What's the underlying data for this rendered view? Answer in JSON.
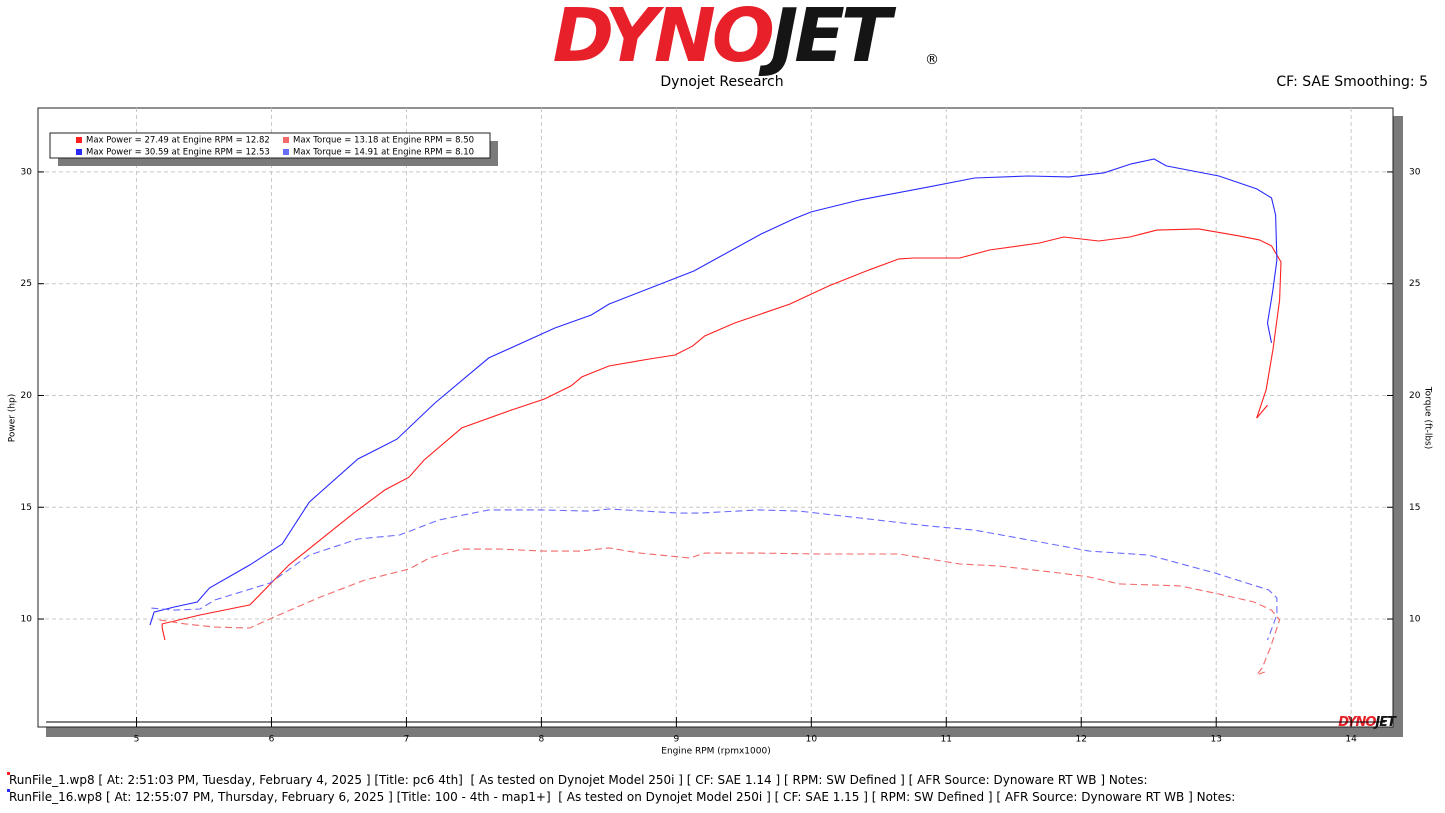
{
  "logo": {
    "red": "DYNO",
    "black": "JET",
    "mark": "®"
  },
  "subtitle": "Dynojet Research",
  "settings_text": "CF: SAE Smoothing: 5",
  "corner_logo": {
    "red": "DYNO",
    "black": "JET"
  },
  "chart_data": {
    "type": "line",
    "x_label": "Engine RPM (rpmx1000)",
    "y_label": "Power (hp)",
    "y2_label": "Torque (ft-lbs)",
    "xlim": [
      4.27,
      14.31
    ],
    "xticks": [
      5,
      6,
      7,
      8,
      9,
      10,
      11,
      12,
      13,
      14
    ],
    "ylim": [
      5.17,
      32.86
    ],
    "yticks": [
      10,
      15,
      20,
      25,
      30
    ],
    "y2lim": [
      5.17,
      32.86
    ],
    "y2ticks": [
      10,
      15,
      20,
      25,
      30
    ],
    "grid": true,
    "legend": "top-left",
    "series": [
      {
        "name": "Max Power = 27.49 at Engine RPM = 12.82",
        "color": "#ff1f1f",
        "dashed": false,
        "x": [
          5.21,
          5.19,
          5.19,
          5.47,
          5.84,
          6.13,
          6.61,
          6.84,
          7.02,
          7.13,
          7.41,
          7.76,
          8.02,
          8.22,
          8.3,
          8.5,
          8.8,
          8.99,
          9.12,
          9.21,
          9.43,
          9.84,
          10.13,
          10.43,
          10.65,
          10.76,
          11.1,
          11.32,
          11.69,
          11.87,
          12.13,
          12.36,
          12.56,
          12.87,
          13.17,
          13.32,
          13.41,
          13.48,
          13.47,
          13.42,
          13.37,
          13.3,
          13.38
        ],
        "values": [
          9.06,
          9.6,
          9.78,
          10.18,
          10.63,
          12.42,
          14.74,
          15.77,
          16.35,
          17.11,
          18.55,
          19.31,
          19.84,
          20.43,
          20.83,
          21.32,
          21.63,
          21.81,
          22.21,
          22.66,
          23.24,
          24.09,
          24.9,
          25.62,
          26.11,
          26.15,
          26.15,
          26.51,
          26.82,
          27.09,
          26.91,
          27.09,
          27.4,
          27.45,
          27.14,
          26.96,
          26.69,
          25.97,
          24.27,
          22.04,
          20.25,
          18.99,
          19.57
        ]
      },
      {
        "name": "Max Power = 30.59 at Engine RPM = 12.53",
        "color": "#2a2aff",
        "dashed": false,
        "x": [
          5.1,
          5.13,
          5.28,
          5.45,
          5.54,
          5.84,
          6.08,
          6.28,
          6.64,
          6.93,
          7.21,
          7.61,
          8.1,
          8.37,
          8.5,
          9.13,
          9.32,
          9.63,
          9.87,
          10.0,
          10.36,
          10.87,
          11.21,
          11.61,
          11.91,
          12.17,
          12.37,
          12.54,
          12.63,
          13.02,
          13.3,
          13.41,
          13.44,
          13.45,
          13.42,
          13.38,
          13.41
        ],
        "values": [
          9.73,
          10.31,
          10.54,
          10.76,
          11.39,
          12.42,
          13.36,
          15.23,
          17.16,
          18.05,
          19.66,
          21.68,
          23.02,
          23.6,
          24.09,
          25.57,
          26.2,
          27.23,
          27.9,
          28.21,
          28.75,
          29.33,
          29.73,
          29.82,
          29.78,
          29.96,
          30.36,
          30.58,
          30.27,
          29.82,
          29.24,
          28.84,
          28.08,
          26.06,
          24.72,
          23.24,
          22.35
        ]
      },
      {
        "name": "Max Torque = 13.18 at Engine RPM = 8.50",
        "color": "#f26a6a",
        "dashed": true,
        "axis": "y2",
        "x": [
          5.17,
          5.36,
          5.58,
          5.84,
          6.02,
          6.36,
          6.69,
          7.02,
          7.17,
          7.41,
          7.69,
          8.02,
          8.28,
          8.5,
          8.73,
          9.1,
          9.21,
          9.61,
          10.06,
          10.65,
          11.1,
          11.39,
          11.84,
          12.06,
          12.28,
          12.73,
          13.02,
          13.28,
          13.41,
          13.47,
          13.4,
          13.34,
          13.3,
          13.36
        ],
        "values": [
          9.96,
          9.78,
          9.64,
          9.6,
          10.09,
          10.98,
          11.74,
          12.24,
          12.73,
          13.13,
          13.13,
          13.04,
          13.04,
          13.18,
          12.95,
          12.73,
          12.95,
          12.95,
          12.91,
          12.91,
          12.46,
          12.37,
          12.06,
          11.88,
          11.57,
          11.48,
          11.12,
          10.76,
          10.4,
          9.96,
          8.7,
          7.81,
          7.5,
          7.63
        ]
      },
      {
        "name": "Max Torque = 14.91 at Engine RPM = 8.10",
        "color": "#6b6bff",
        "dashed": true,
        "axis": "y2",
        "x": [
          5.11,
          5.28,
          5.47,
          5.58,
          5.99,
          6.28,
          6.64,
          6.95,
          7.24,
          7.61,
          7.99,
          8.36,
          8.5,
          9.02,
          9.17,
          9.61,
          9.91,
          10.36,
          10.87,
          11.21,
          11.69,
          12.06,
          12.5,
          12.99,
          13.39,
          13.45,
          13.45,
          13.38
        ],
        "values": [
          10.49,
          10.4,
          10.45,
          10.85,
          11.61,
          12.86,
          13.58,
          13.76,
          14.43,
          14.88,
          14.88,
          14.83,
          14.92,
          14.74,
          14.74,
          14.88,
          14.83,
          14.52,
          14.16,
          13.98,
          13.45,
          13.04,
          12.86,
          12.06,
          11.3,
          10.94,
          10.18,
          9.06
        ]
      }
    ]
  },
  "footer": {
    "lines": [
      {
        "text": "RunFile_1.wp8 [ At: 2:51:03 PM, Tuesday, February 4, 2025 ] [Title: pc6 4th]  [ As tested on Dynojet Model 250i ] [ CF: SAE 1.14 ] [ RPM: SW Defined ] [ AFR Source: Dynoware RT WB ] Notes:",
        "color": "#ff1f1f"
      },
      {
        "text": "RunFile_16.wp8 [ At: 12:55:07 PM, Thursday, February 6, 2025 ] [Title: 100 - 4th - map1+]  [ As tested on Dynojet Model 250i ] [ CF: SAE 1.15 ] [ RPM: SW Defined ] [ AFR Source: Dynoware RT WB ] Notes:",
        "color": "#2a2aff"
      }
    ]
  }
}
